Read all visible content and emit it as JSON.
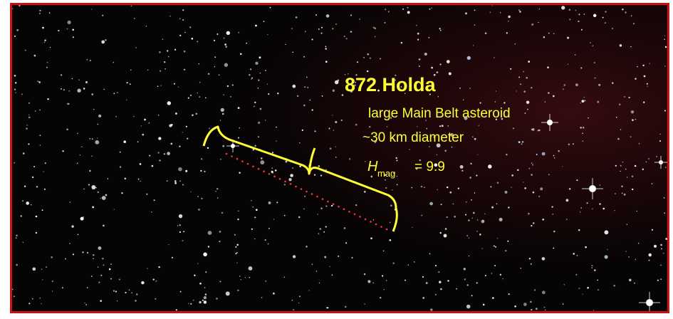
{
  "annotation": {
    "title": "872 Holda",
    "lines": [
      "large Main Belt asteroid",
      "~30 km diameter"
    ],
    "magnitude": {
      "symbol": "H",
      "subscript": "mag",
      "value_text": "= 9.9"
    }
  }
}
